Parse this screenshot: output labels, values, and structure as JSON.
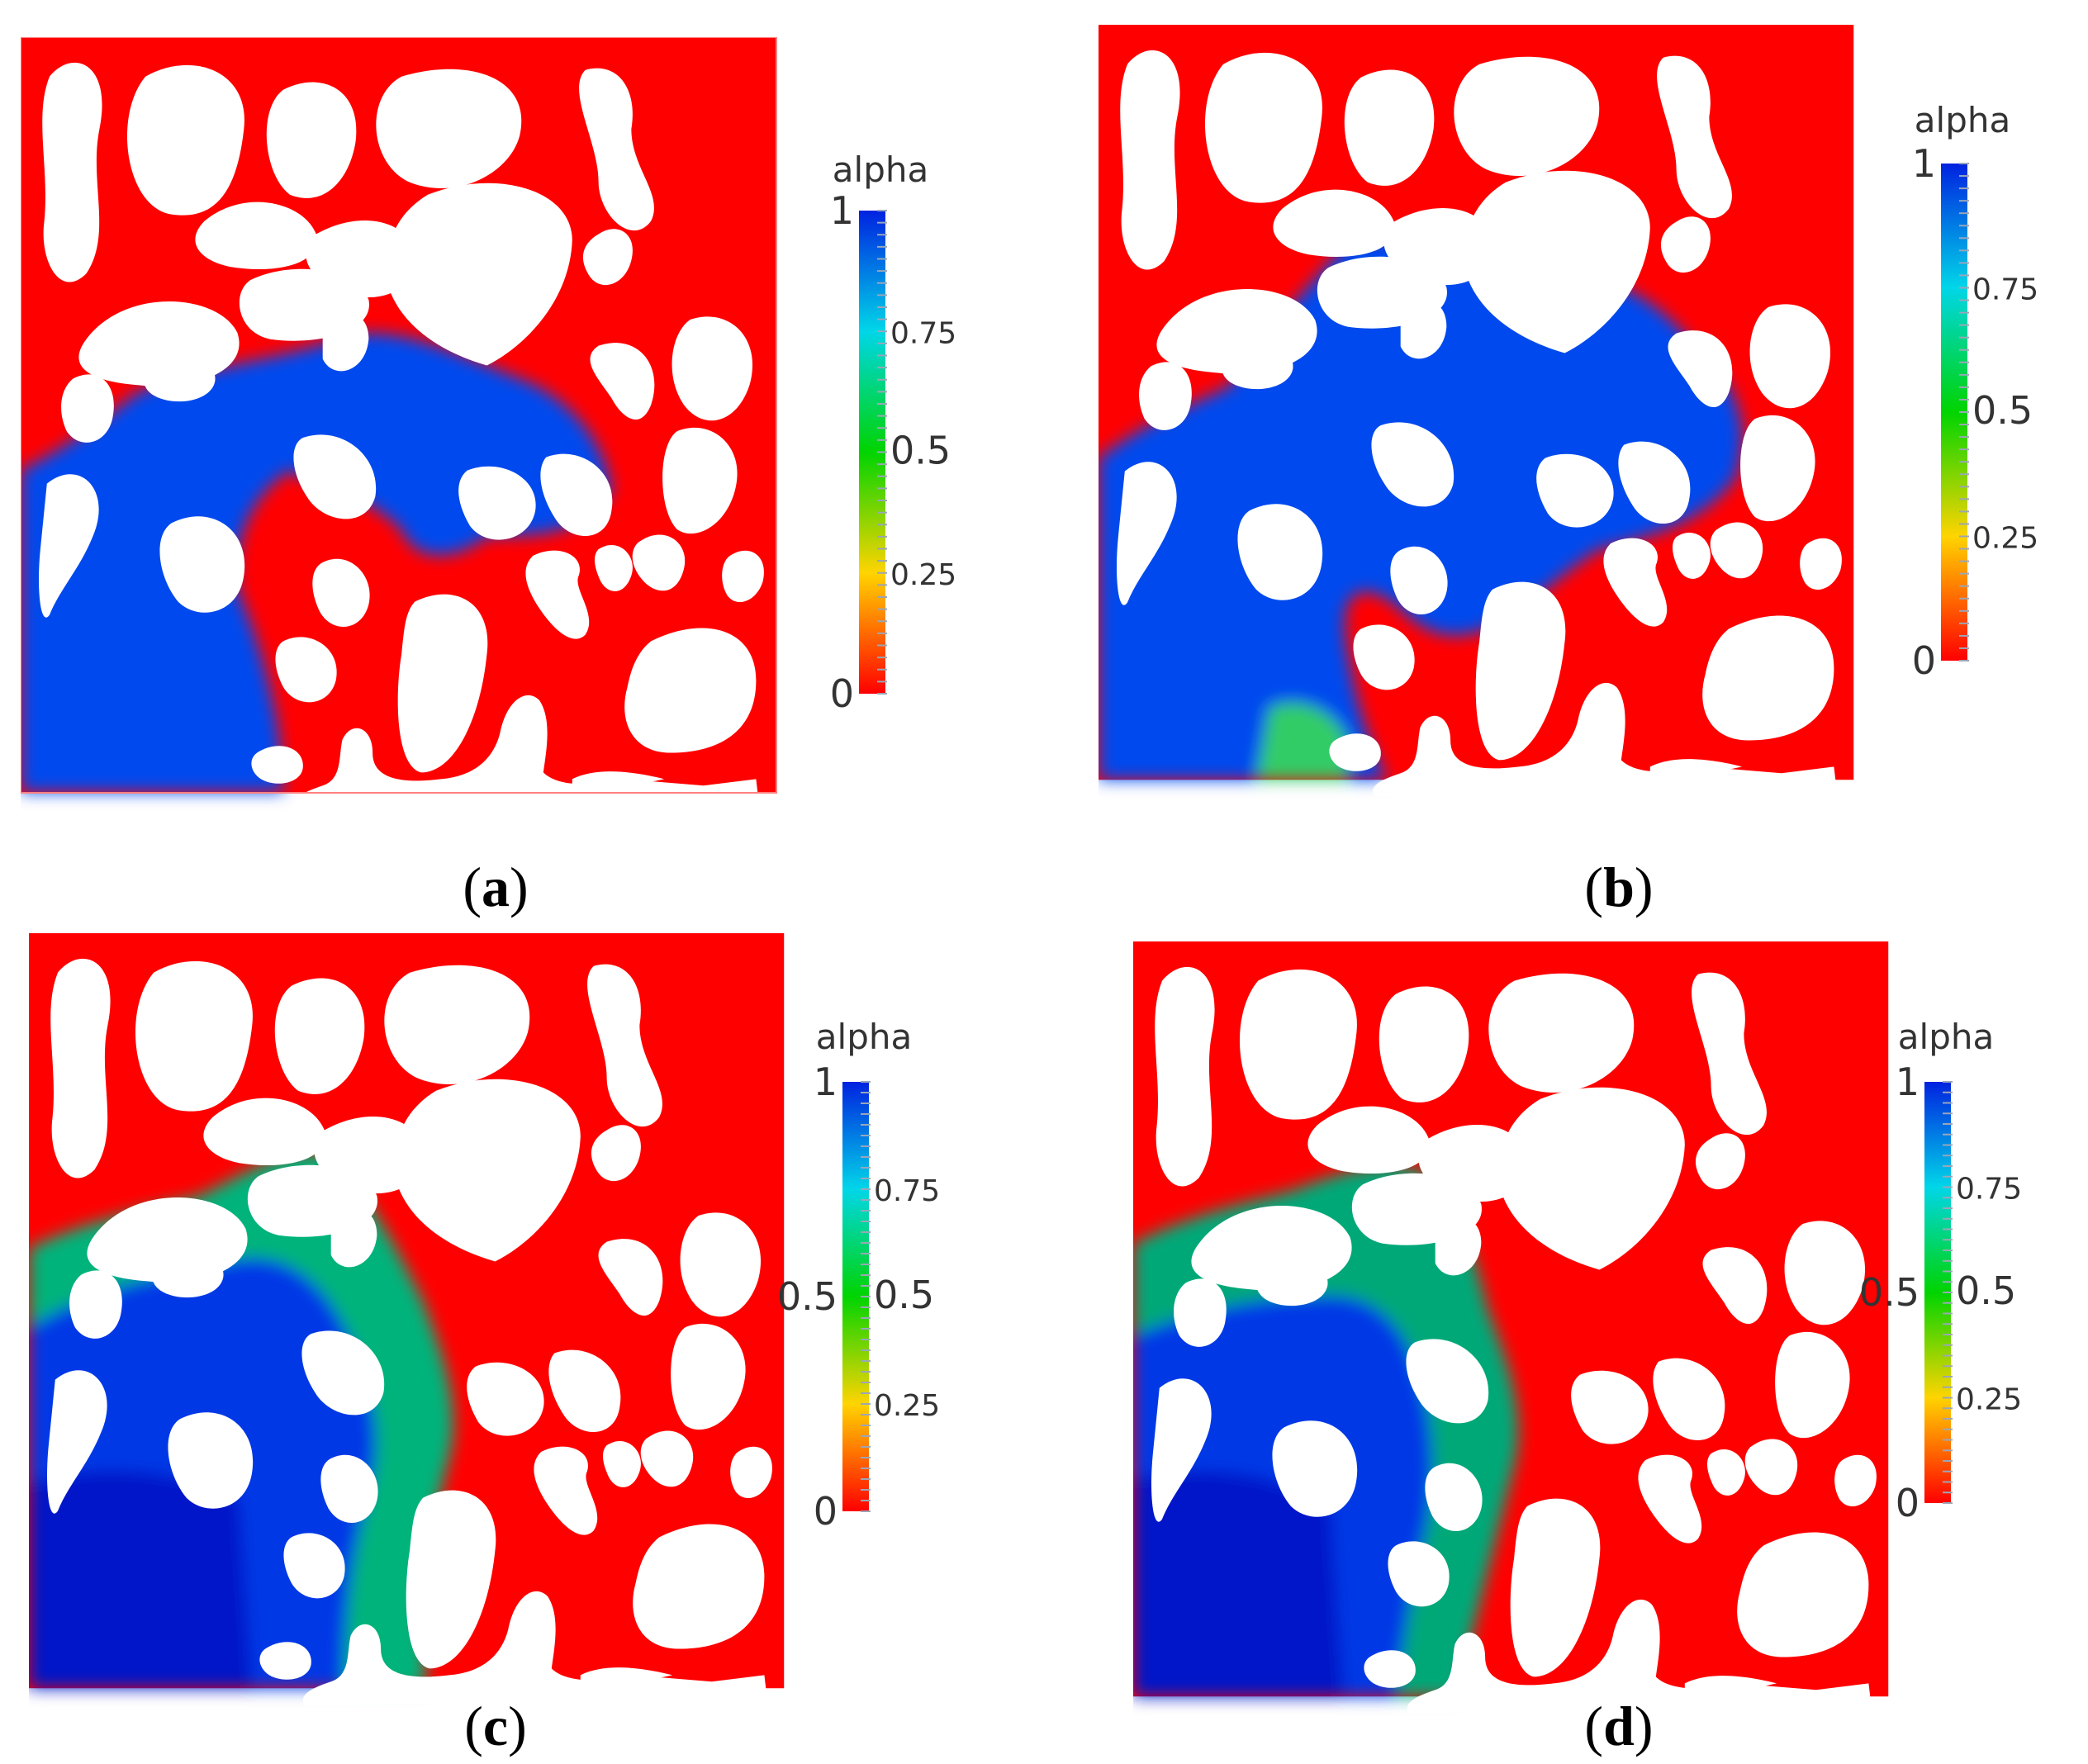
{
  "figure": {
    "panels": [
      {
        "caption": "a",
        "colorbar": {
          "title": "alpha",
          "ticks_right": [
            "0.75",
            "0.5",
            "0.25"
          ],
          "ticks_left": [
            "1",
            "0"
          ]
        }
      },
      {
        "caption": "b",
        "colorbar": {
          "title": "alpha",
          "ticks_right": [
            "0.75",
            "0.5",
            "0.25"
          ],
          "ticks_left": [
            "1",
            "0"
          ]
        }
      },
      {
        "caption": "c",
        "colorbar": {
          "title": "alpha",
          "ticks_right": [
            "0.75",
            "0.5",
            "0.25"
          ],
          "ticks_left": [
            "1",
            "0.5",
            "0"
          ]
        }
      },
      {
        "caption": "d",
        "colorbar": {
          "title": "alpha",
          "ticks_right": [
            "0.75",
            "0.5",
            "0.25"
          ],
          "ticks_left": [
            "1",
            "0.5",
            "0"
          ]
        }
      }
    ],
    "colors": {
      "solid_phase": "#ffffff",
      "alpha_0": "#ff0000",
      "alpha_025": "#ffd400",
      "alpha_05": "#00d400",
      "alpha_075": "#00d6e8",
      "alpha_1": "#0022e0"
    }
  }
}
